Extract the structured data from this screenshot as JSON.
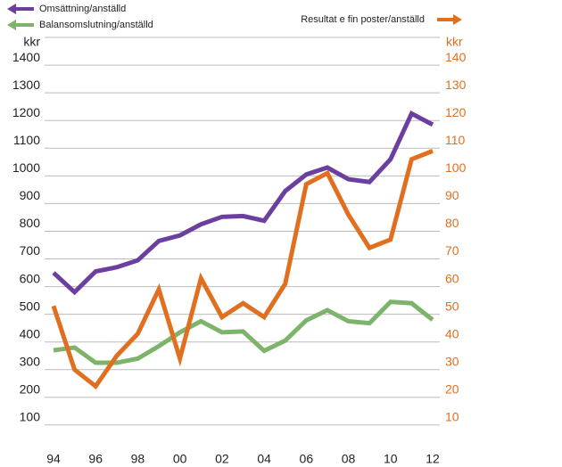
{
  "chart_data": {
    "type": "line",
    "y_unit": "kkr",
    "y2_unit": "kkr",
    "categories": [
      "94",
      null,
      "96",
      null,
      "98",
      null,
      "00",
      null,
      "02",
      null,
      "04",
      null,
      "06",
      null,
      "08",
      null,
      "10",
      null,
      "12"
    ],
    "series": [
      {
        "name": "Omsättning/anställd",
        "color": "#6b3fa0",
        "values": [
          650,
          580,
          655,
          670,
          695,
          765,
          785,
          825,
          852,
          855,
          838,
          945,
          1005,
          1030,
          988,
          978,
          1060,
          1225,
          1185
        ]
      },
      {
        "name": "Balansomslutning/anställd",
        "color": "#7db36b",
        "values": [
          370,
          380,
          325,
          325,
          340,
          385,
          435,
          475,
          435,
          438,
          368,
          405,
          478,
          515,
          475,
          468,
          545,
          540,
          480
        ]
      },
      {
        "name": "Resultat e fin poster/anställd",
        "color": "#e07020",
        "axis": "y2",
        "values": [
          53,
          30,
          24,
          35,
          43,
          59,
          34,
          63,
          49,
          54,
          49,
          61,
          97,
          101,
          86,
          74,
          77,
          106,
          109
        ]
      }
    ],
    "ylim": [
      0,
      1500
    ],
    "yticks": [
      100,
      200,
      300,
      400,
      500,
      600,
      700,
      800,
      900,
      1000,
      1100,
      1200,
      1300,
      1400
    ],
    "y2lim": [
      0,
      150
    ],
    "y2ticks": [
      10,
      20,
      30,
      40,
      50,
      60,
      70,
      80,
      90,
      100,
      110,
      120,
      130,
      140
    ],
    "y2color": "#e07020",
    "grid": true
  }
}
